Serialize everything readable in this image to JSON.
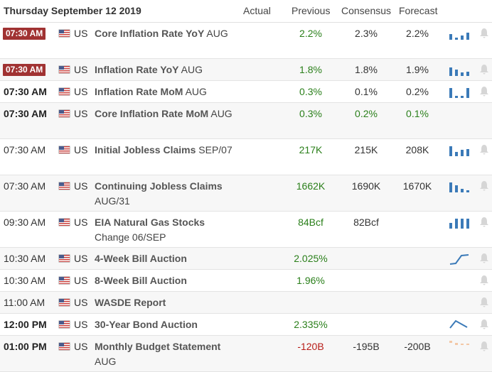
{
  "header": {
    "date": "Thursday September 12 2019",
    "actual": "Actual",
    "previous": "Previous",
    "consensus": "Consensus",
    "forecast": "Forecast"
  },
  "colors": {
    "badge": "#a03232",
    "positive": "#2a7f1a",
    "negative": "#b81d18",
    "spark": "#3b7ab8"
  },
  "rows": [
    {
      "time": "07:30 AM",
      "time_style": "badge",
      "country": "US",
      "event": "Core Inflation Rate YoY",
      "period": "AUG",
      "previous": "2.2%",
      "consensus": "2.3%",
      "forecast": "2.2%",
      "spark": "bars",
      "bell": true
    },
    {
      "time": "07:30 AM",
      "time_style": "badge",
      "country": "US",
      "event": "Inflation Rate YoY",
      "period": "AUG",
      "previous": "1.8%",
      "consensus": "1.8%",
      "forecast": "1.9%",
      "spark": "bars",
      "bell": true
    },
    {
      "time": "07:30 AM",
      "time_style": "bold",
      "country": "US",
      "event": "Inflation Rate MoM",
      "period": "AUG",
      "previous": "0.3%",
      "consensus": "0.1%",
      "forecast": "0.2%",
      "spark": "bars",
      "bell": true
    },
    {
      "time": "07:30 AM",
      "time_style": "bold",
      "country": "US",
      "event": "Core Inflation Rate MoM",
      "period": "AUG",
      "previous": "0.3%",
      "consensus": "0.2%",
      "forecast": "0.1%",
      "spark": "none",
      "bell": false
    },
    {
      "time": "07:30 AM",
      "time_style": "normal",
      "country": "US",
      "event": "Initial Jobless Claims",
      "period": "SEP/07",
      "previous": "217K",
      "consensus": "215K",
      "forecast": "208K",
      "spark": "bars",
      "bell": true
    },
    {
      "time": "07:30 AM",
      "time_style": "normal",
      "country": "US",
      "event": "Continuing Jobless Claims",
      "period": "AUG/31",
      "previous": "1662K",
      "consensus": "1690K",
      "forecast": "1670K",
      "spark": "bars",
      "bell": true
    },
    {
      "time": "09:30 AM",
      "time_style": "normal",
      "country": "US",
      "event": "EIA Natural Gas Stocks",
      "period": "Change 06/SEP",
      "previous": "84Bcf",
      "consensus": "82Bcf",
      "forecast": "",
      "spark": "bars",
      "bell": true
    },
    {
      "time": "10:30 AM",
      "time_style": "normal",
      "country": "US",
      "event": "4-Week Bill Auction",
      "period": "",
      "previous": "2.025%",
      "consensus": "",
      "forecast": "",
      "spark": "line-up",
      "bell": true
    },
    {
      "time": "10:30 AM",
      "time_style": "normal",
      "country": "US",
      "event": "8-Week Bill Auction",
      "period": "",
      "previous": "1.96%",
      "consensus": "",
      "forecast": "",
      "spark": "none",
      "bell": true
    },
    {
      "time": "11:00 AM",
      "time_style": "normal",
      "country": "US",
      "event": "WASDE Report",
      "period": "",
      "previous": "",
      "consensus": "",
      "forecast": "",
      "spark": "none",
      "bell": true
    },
    {
      "time": "12:00 PM",
      "time_style": "bold",
      "country": "US",
      "event": "30-Year Bond Auction",
      "period": "",
      "previous": "2.335%",
      "consensus": "",
      "forecast": "",
      "spark": "line-peak",
      "bell": true
    },
    {
      "time": "01:00 PM",
      "time_style": "bold",
      "country": "US",
      "event": "Monthly Budget Statement",
      "period": "AUG",
      "previous": "-120B",
      "consensus": "-195B",
      "forecast": "-200B",
      "spark": "neg-bars",
      "bell": true
    }
  ]
}
